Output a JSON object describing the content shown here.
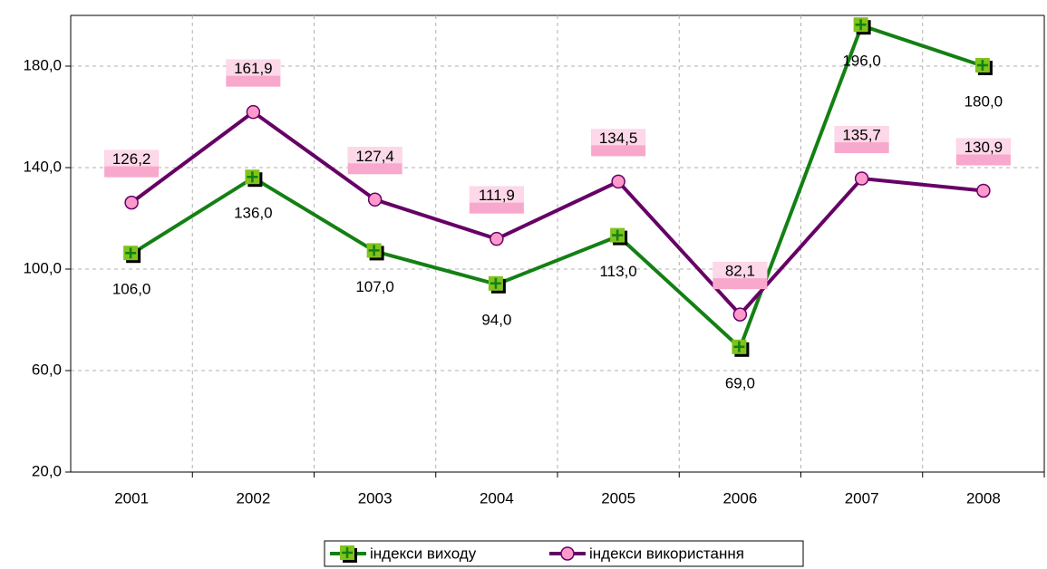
{
  "chart_data": {
    "type": "line",
    "categories": [
      "2001",
      "2002",
      "2003",
      "2004",
      "2005",
      "2006",
      "2007",
      "2008"
    ],
    "series": [
      {
        "name": "індекси виходу",
        "color": "#138013",
        "marker_color": "#7fc31c",
        "values": [
          106,
          136,
          107,
          94,
          113,
          69,
          196,
          180
        ],
        "value_labels": [
          "106,0",
          "136,0",
          "107,0",
          "94,0",
          "113,0",
          "69,0",
          "196,0",
          "180,0"
        ]
      },
      {
        "name": "індекси використання",
        "color": "#660066",
        "marker_color": "#ff99cc",
        "values": [
          126.2,
          161.9,
          127.4,
          111.9,
          134.5,
          82.1,
          135.7,
          130.9
        ],
        "value_labels": [
          "126,2",
          "161,9",
          "127,4",
          "111,9",
          "134,5",
          "82,1",
          "135,7",
          "130,9"
        ]
      }
    ],
    "ylim": [
      20,
      200
    ],
    "yticks": [
      {
        "value": 20,
        "label": "20,0"
      },
      {
        "value": 60,
        "label": "60,0"
      },
      {
        "value": 100,
        "label": "100,0"
      },
      {
        "value": 140,
        "label": "140,0"
      },
      {
        "value": 180,
        "label": "180,0"
      }
    ],
    "grid": true,
    "legend": "bottom"
  }
}
